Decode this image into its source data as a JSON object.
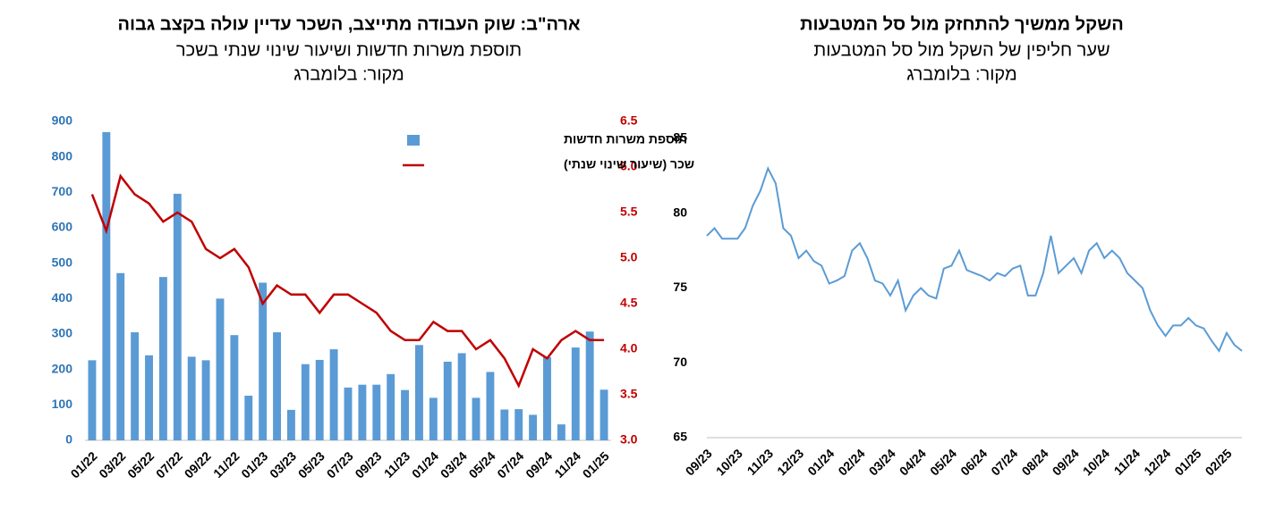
{
  "chart_data": [
    {
      "type": "bar",
      "title": "ארה\"ב: שוק העבודה מתייצב, השכר עדיין עולה בקצב גבוה",
      "subtitle": "תוספת משרות חדשות ושיעור שינוי שנתי בשכר",
      "source": "מקור: בלומברג",
      "categories": [
        "01/22",
        null,
        "03/22",
        null,
        "05/22",
        null,
        "07/22",
        null,
        "09/22",
        null,
        "11/22",
        null,
        "01/23",
        null,
        "03/23",
        null,
        "05/23",
        null,
        "07/23",
        null,
        "09/23",
        null,
        "11/23",
        null,
        "01/24",
        null,
        "03/24",
        null,
        "05/24",
        null,
        "07/24",
        null,
        "09/24",
        null,
        "11/24",
        null,
        "01/25"
      ],
      "series": [
        {
          "name": "תוספת משרות חדשות",
          "color": "#5b9bd5",
          "type": "bar",
          "values": [
            226,
            870,
            472,
            305,
            240,
            461,
            696,
            236,
            226,
            400,
            297,
            126,
            445,
            305,
            86,
            215,
            227,
            257,
            149,
            157,
            157,
            187,
            142,
            269,
            120,
            222,
            246,
            120,
            193,
            87,
            88,
            72,
            235,
            45,
            262,
            307,
            143
          ]
        },
        {
          "name": "שכר (שיעור שינוי שנתי)",
          "color": "#c00000",
          "type": "line",
          "axis": "y2",
          "values": [
            5.7,
            5.3,
            5.9,
            5.7,
            5.6,
            5.4,
            5.5,
            5.4,
            5.1,
            5.0,
            5.1,
            4.9,
            4.5,
            4.7,
            4.6,
            4.6,
            4.4,
            4.6,
            4.6,
            4.5,
            4.4,
            4.2,
            4.1,
            4.1,
            4.3,
            4.2,
            4.2,
            4.0,
            4.1,
            3.9,
            3.6,
            4.0,
            3.9,
            4.1,
            4.2,
            4.1,
            4.1
          ]
        }
      ],
      "ylim": [
        0,
        900
      ],
      "yticks": [
        0,
        100,
        200,
        300,
        400,
        500,
        600,
        700,
        800,
        900
      ],
      "y2lim": [
        3.0,
        6.5
      ],
      "y2ticks": [
        {
          "value": 3.0,
          "label": "3.0"
        },
        3.5,
        {
          "value": 4.0,
          "label": "4.0"
        },
        4.5,
        {
          "value": 5.0,
          "label": "5.0"
        },
        5.5,
        {
          "value": 6.0,
          "label": "6.0"
        },
        6.5
      ],
      "legend": "top-right"
    },
    {
      "type": "line",
      "title": "השקל ממשיך להתחזק מול סל המטבעות",
      "subtitle": "שער חליפין של השקל מול סל המטבעות",
      "source": "מקור: בלומברג",
      "categories": [
        "09/23",
        null,
        null,
        null,
        "10/23",
        null,
        null,
        null,
        "11/23",
        null,
        null,
        null,
        "12/23",
        null,
        null,
        null,
        "01/24",
        null,
        null,
        null,
        "02/24",
        null,
        null,
        null,
        "03/24",
        null,
        null,
        null,
        "04/24",
        null,
        null,
        null,
        "05/24",
        null,
        null,
        null,
        "06/24",
        null,
        null,
        null,
        "07/24",
        null,
        null,
        null,
        "08/24",
        null,
        null,
        null,
        "09/24",
        null,
        null,
        null,
        "10/24",
        null,
        null,
        null,
        "11/24",
        null,
        null,
        null,
        "12/24",
        null,
        null,
        null,
        "01/25",
        null,
        null,
        null,
        "02/25",
        null,
        null
      ],
      "series": [
        {
          "color": "#5b9bd5",
          "values": [
            78.5,
            79,
            78.3,
            78.3,
            78.3,
            79,
            80.5,
            81.5,
            83,
            82,
            79,
            78.5,
            77,
            77.5,
            76.8,
            76.5,
            75.3,
            75.5,
            75.8,
            77.5,
            78,
            77,
            75.5,
            75.3,
            74.5,
            75.5,
            73.5,
            74.5,
            75,
            74.5,
            74.3,
            76.3,
            76.5,
            77.5,
            76.2,
            76,
            75.8,
            75.5,
            76,
            75.8,
            76.3,
            76.5,
            74.5,
            74.5,
            76,
            78.5,
            76,
            76.5,
            77,
            76,
            77.5,
            78,
            77,
            77.5,
            77,
            76,
            75.5,
            75,
            73.5,
            72.5,
            71.8,
            72.5,
            72.5,
            73,
            72.5,
            72.3,
            71.5,
            70.8,
            72,
            71.2,
            70.8
          ]
        }
      ],
      "ylim": [
        65,
        85
      ],
      "yticks": [
        65,
        70,
        75,
        80,
        85
      ]
    }
  ]
}
